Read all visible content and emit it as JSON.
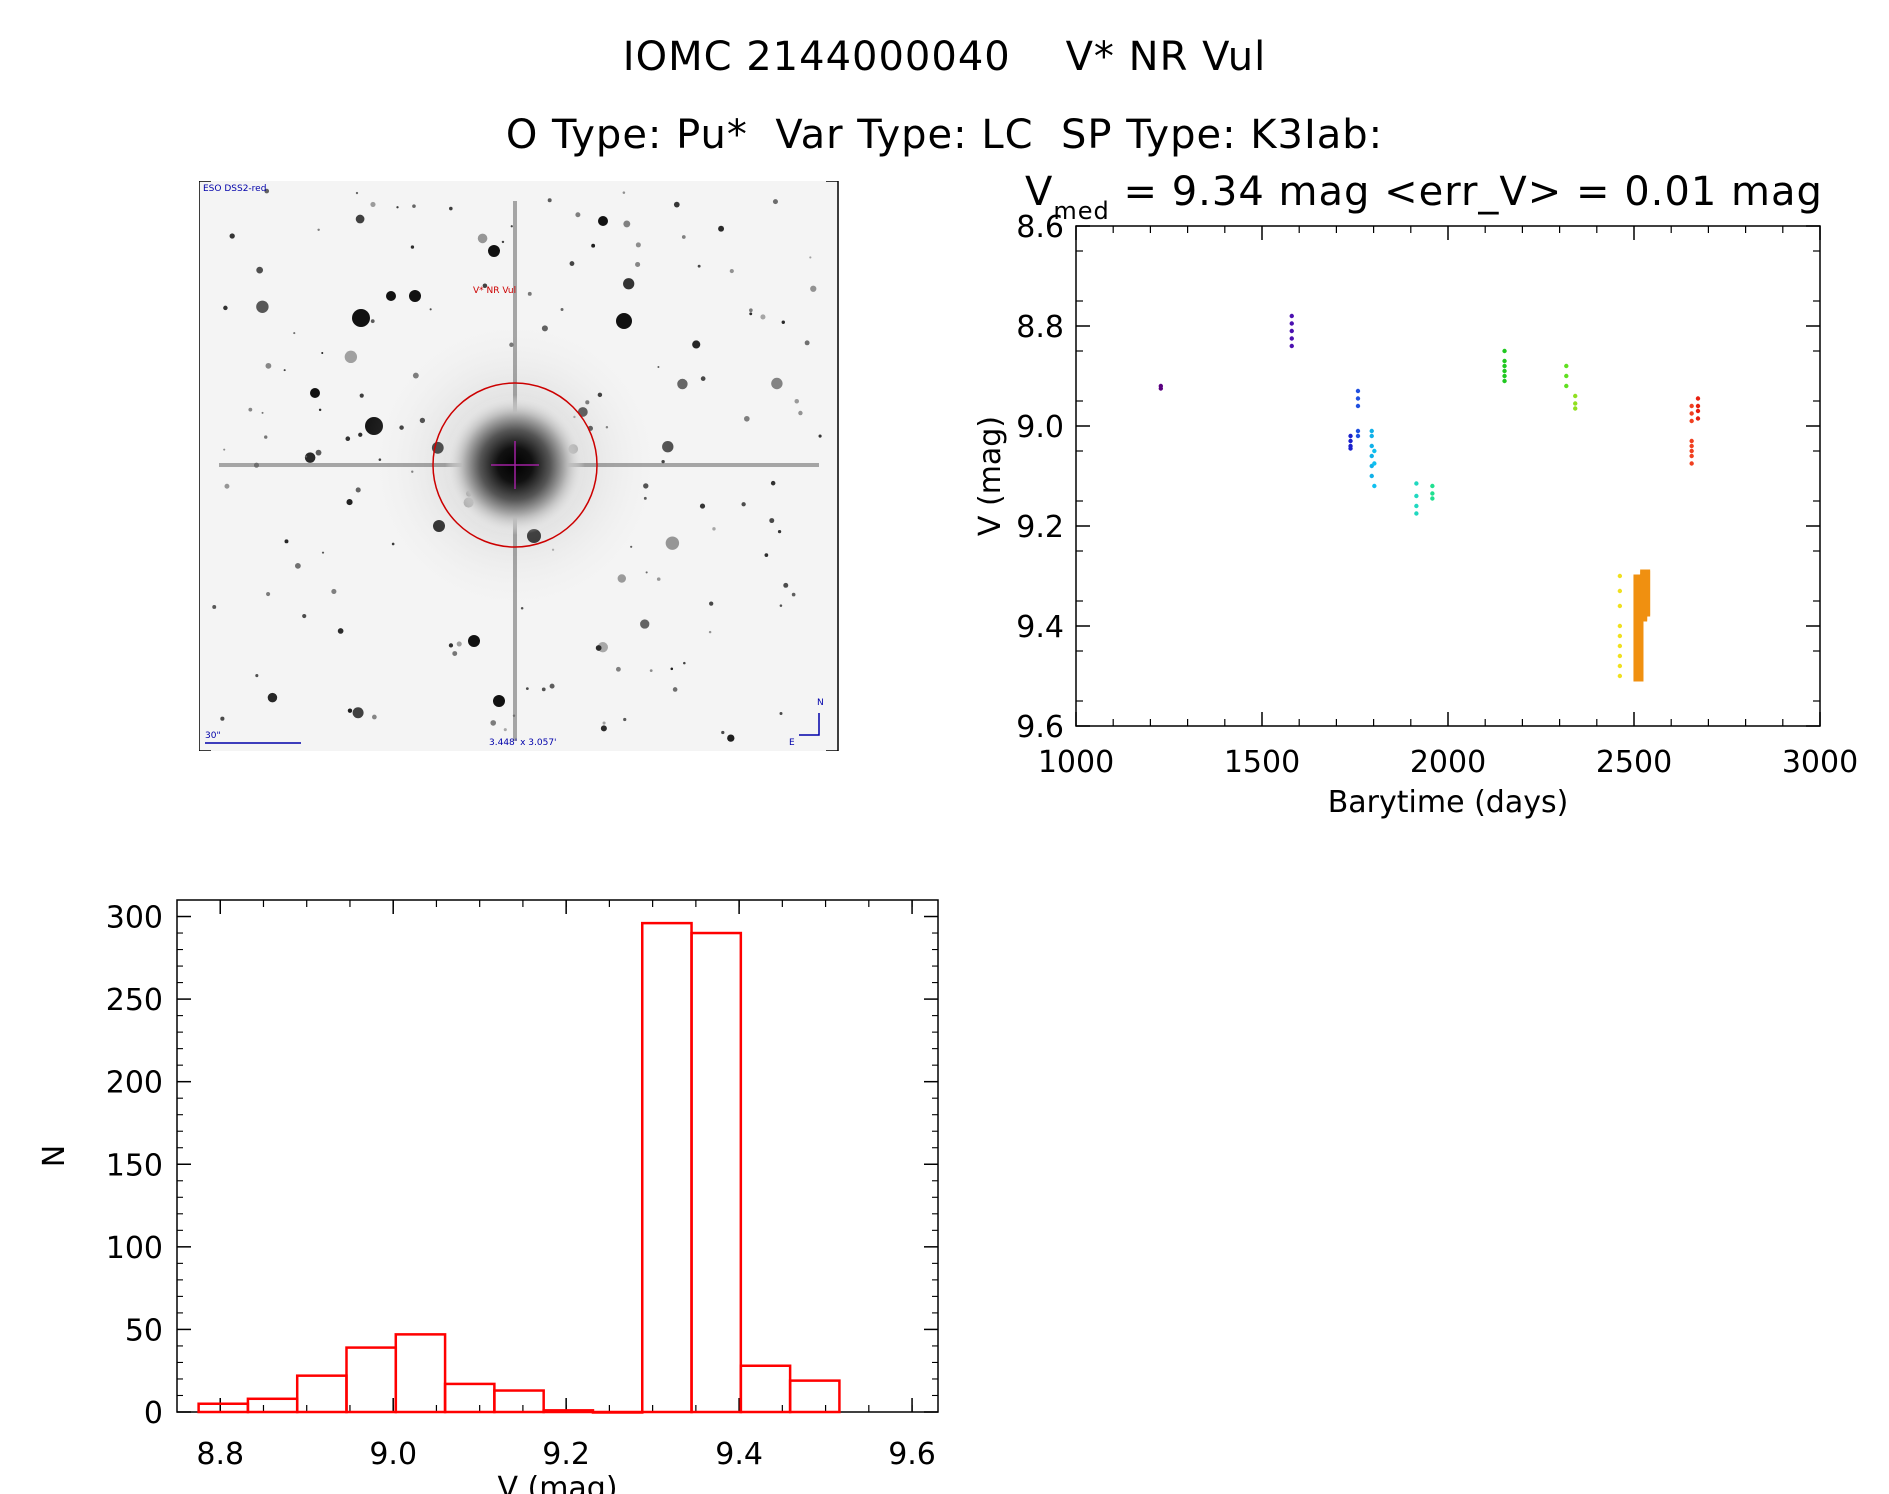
{
  "header": {
    "title_line1": "IOMC 2144000040    V* NR Vul",
    "title_line2": "O Type: Pu*  Var Type: LC  SP Type: K3Iab:"
  },
  "finder": {
    "survey_label": "ESO DSS2-red",
    "target_label": "V* NR Vul",
    "scale_label": "30\"",
    "fov_label": "3.448' x 3.057'",
    "north_label": "N",
    "east_label": "E",
    "colors": {
      "target": "#cc0000",
      "marker": "#a020a0",
      "annot": "#0000aa"
    }
  },
  "chart_data": [
    {
      "type": "scatter",
      "title_prefix": "V",
      "title_subscript": "med",
      "title_rest": " = 9.34 mag <err_V> = 0.01 mag",
      "xlabel": "Barytime (days)",
      "ylabel": "V (mag)",
      "xlim": [
        1000,
        3000
      ],
      "ylim": [
        8.6,
        9.6
      ],
      "y_inverted": true,
      "xticks": [
        1000,
        1500,
        2000,
        2500,
        3000
      ],
      "xtick_labels": [
        "1000",
        "1500",
        "2000",
        "2500",
        "3000"
      ],
      "yticks": [
        8.6,
        8.8,
        9.0,
        9.2,
        9.4,
        9.6
      ],
      "ytick_labels": [
        "8.6",
        "8.8",
        "9.0",
        "9.2",
        "9.4",
        "9.6"
      ],
      "groups": [
        {
          "x": 1228,
          "y": [
            8.92,
            8.925
          ],
          "color": "#5a0080"
        },
        {
          "x": 1580,
          "y": [
            8.78,
            8.795,
            8.81,
            8.825,
            8.84
          ],
          "color": "#4b10b0"
        },
        {
          "x": 1738,
          "y": [
            9.02,
            9.03,
            9.04,
            9.045
          ],
          "color": "#1a20cc"
        },
        {
          "x": 1758,
          "y": [
            8.93,
            8.945,
            8.96,
            9.01,
            9.02
          ],
          "color": "#2050e0"
        },
        {
          "x": 1795,
          "y": [
            9.01,
            9.02,
            9.04,
            9.06,
            9.08,
            9.1
          ],
          "color": "#10b0e8"
        },
        {
          "x": 1802,
          "y": [
            9.05,
            9.075,
            9.12
          ],
          "color": "#10c0f0"
        },
        {
          "x": 1915,
          "y": [
            9.115,
            9.14,
            9.16,
            9.175
          ],
          "color": "#20d8c0"
        },
        {
          "x": 1958,
          "y": [
            9.12,
            9.135,
            9.145
          ],
          "color": "#20e090"
        },
        {
          "x": 2152,
          "y": [
            8.85,
            8.87,
            8.88,
            8.89,
            8.9,
            8.91
          ],
          "color": "#20c820"
        },
        {
          "x": 2318,
          "y": [
            8.88,
            8.9,
            8.92
          ],
          "color": "#60e020"
        },
        {
          "x": 2342,
          "y": [
            8.94,
            8.955,
            8.965
          ],
          "color": "#90e020"
        },
        {
          "x": 2462,
          "y": [
            9.3,
            9.33,
            9.36,
            9.4,
            9.42,
            9.44,
            9.46,
            9.48,
            9.5
          ],
          "color": "#f0e020"
        },
        {
          "x": 2512,
          "y_range": [
            9.3,
            9.51
          ],
          "color": "#f09010",
          "dense": true
        },
        {
          "x": 2522,
          "y_range": [
            9.3,
            9.39
          ],
          "color": "#f09010",
          "dense": true
        },
        {
          "x": 2530,
          "y_range": [
            9.29,
            9.38
          ],
          "color": "#f09010",
          "dense": true
        },
        {
          "x": 2655,
          "y": [
            8.96,
            8.975,
            8.99,
            9.03,
            9.04,
            9.05,
            9.06,
            9.075
          ],
          "color": "#f04020"
        },
        {
          "x": 2672,
          "y": [
            8.945,
            8.96,
            8.97,
            8.985
          ],
          "color": "#e82010"
        }
      ]
    },
    {
      "type": "bar",
      "histogram": true,
      "xlabel": "V (mag)",
      "ylabel": "N",
      "xlim": [
        8.75,
        9.63
      ],
      "ylim": [
        0,
        310
      ],
      "bar_color": "#ff0000",
      "bin_width": 0.057,
      "bin_starts": [
        8.775,
        8.832,
        8.889,
        8.946,
        9.003,
        9.06,
        9.117,
        9.174,
        9.231,
        9.288,
        9.345,
        9.402,
        9.459
      ],
      "values": [
        5,
        8,
        22,
        39,
        47,
        17,
        13,
        1,
        0,
        296,
        290,
        28,
        19
      ],
      "xticks": [
        8.8,
        9.0,
        9.2,
        9.4,
        9.6
      ],
      "xtick_labels": [
        "8.8",
        "9.0",
        "9.2",
        "9.4",
        "9.6"
      ],
      "yticks": [
        0,
        50,
        100,
        150,
        200,
        250,
        300
      ],
      "ytick_labels": [
        "0",
        "50",
        "100",
        "150",
        "200",
        "250",
        "300"
      ]
    }
  ]
}
